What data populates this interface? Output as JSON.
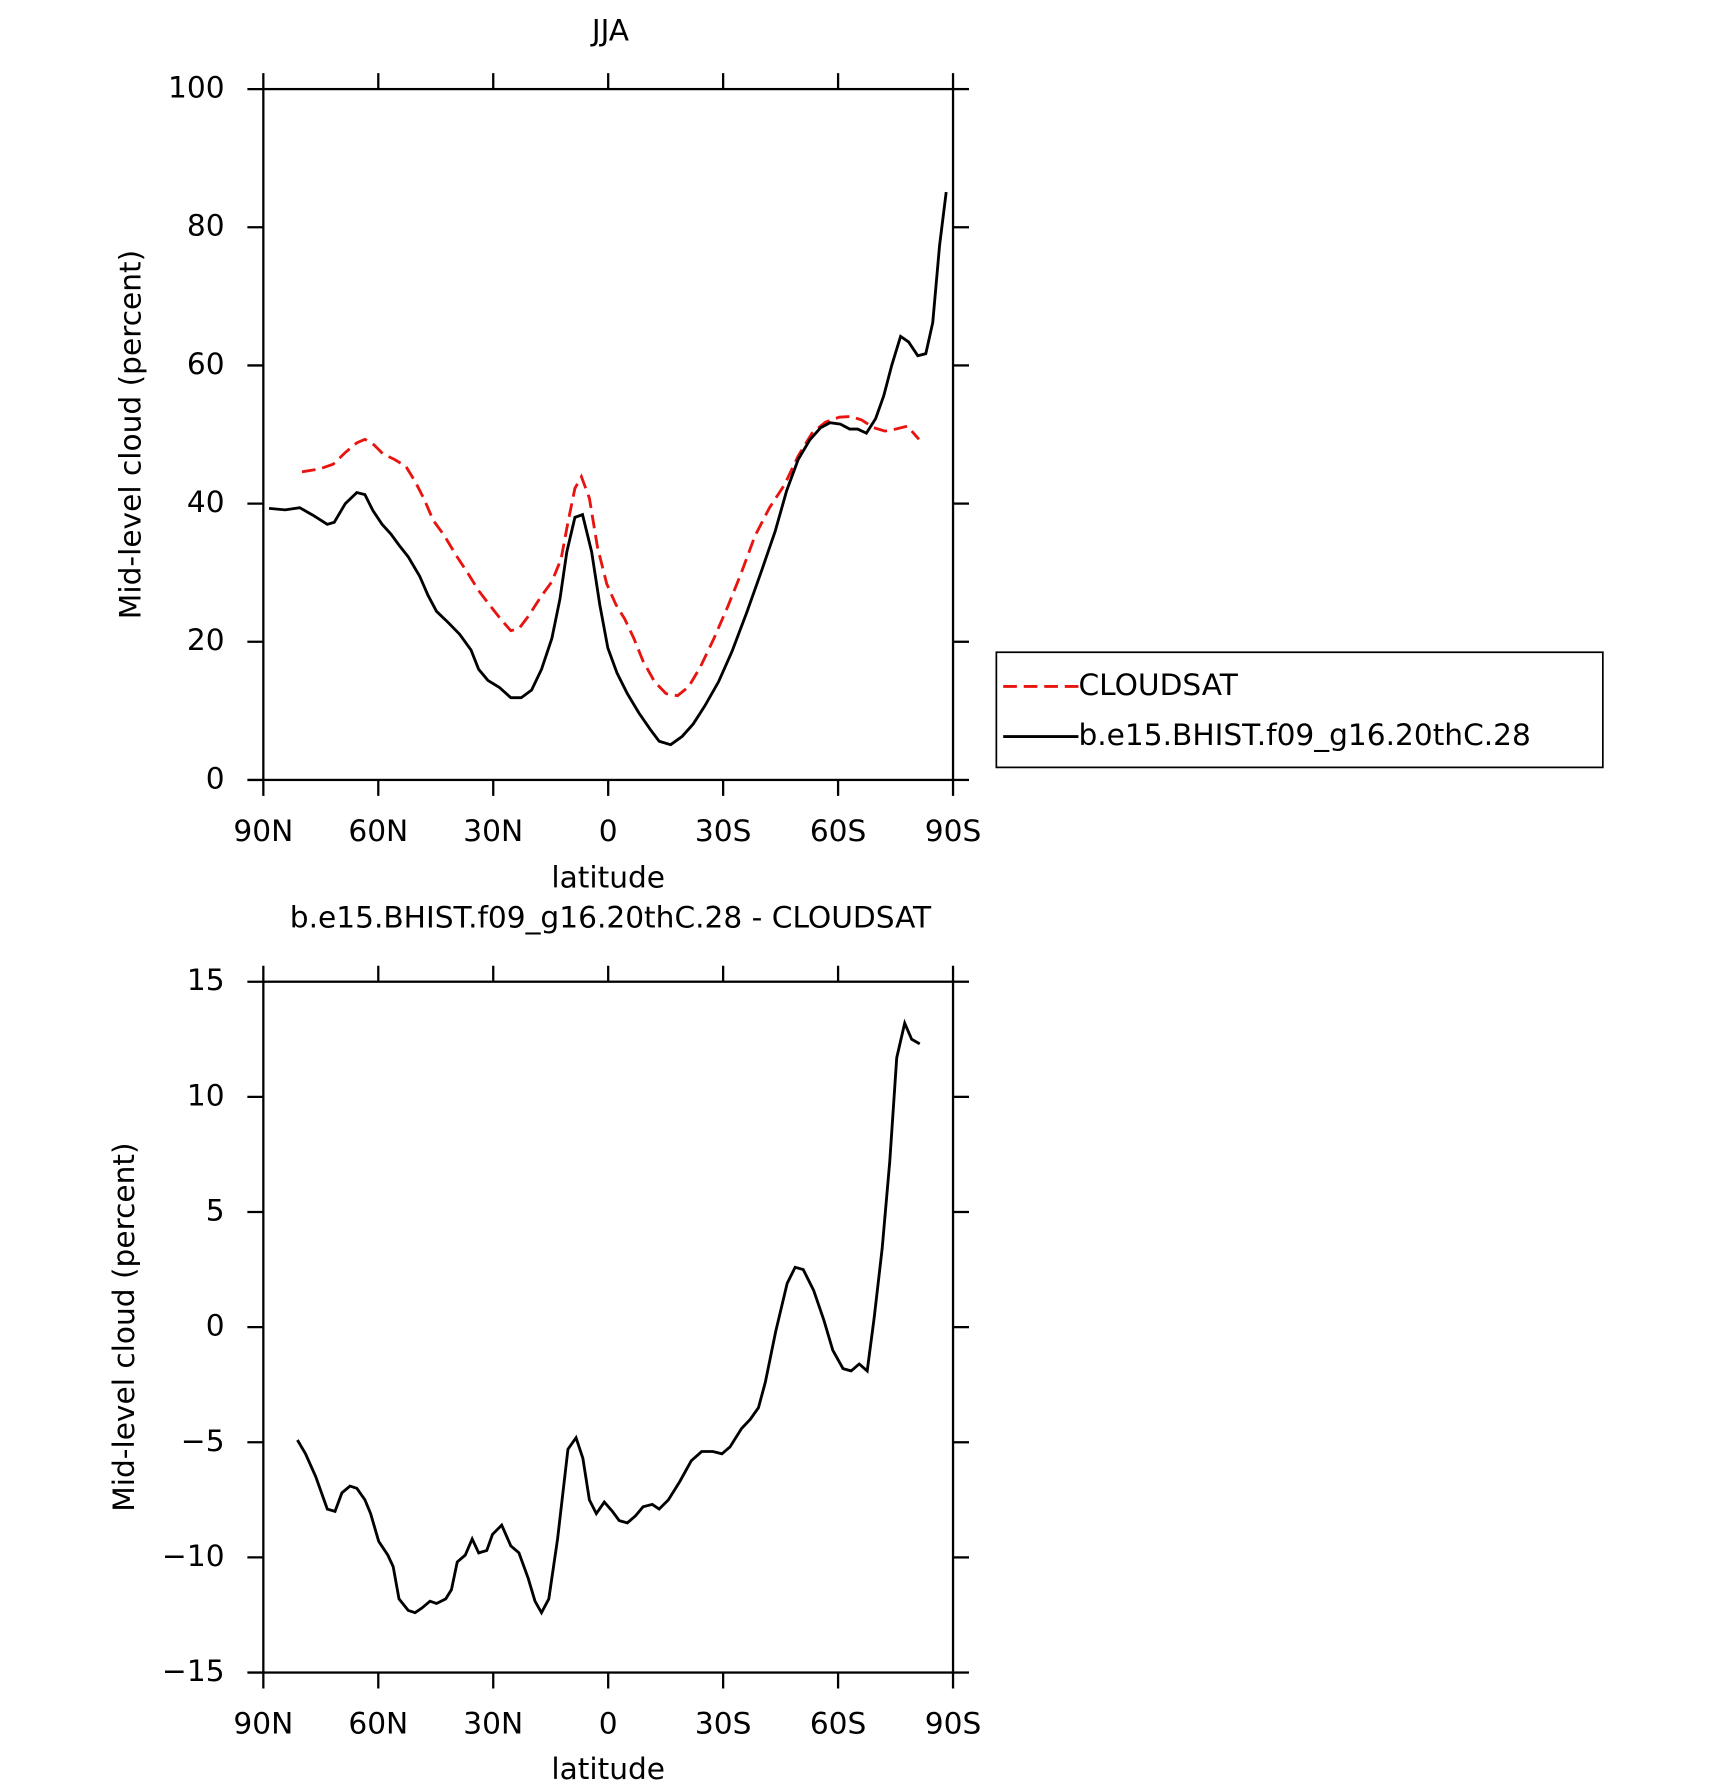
{
  "chart_data": [
    {
      "type": "line",
      "title": "JJA",
      "xlabel": "latitude",
      "ylabel": "Mid-level cloud (percent)",
      "xlim": [
        90,
        -90
      ],
      "xticks": [
        {
          "value": 90,
          "label": "90N"
        },
        {
          "value": 60,
          "label": "60N"
        },
        {
          "value": 30,
          "label": "30N"
        },
        0,
        {
          "value": -30,
          "label": "30S"
        },
        {
          "value": -60,
          "label": "60S"
        },
        {
          "value": -90,
          "label": "90S"
        }
      ],
      "ylim": [
        0,
        100
      ],
      "yticks": [
        0,
        20,
        40,
        60,
        80,
        100
      ],
      "legend": "right",
      "series": [
        {
          "name": "CLOUDSAT",
          "color": "#e8140f",
          "linestyle": "dashed",
          "x": [
            79.9,
            75.4,
            71.8,
            68.6,
            65.6,
            63.5,
            61.1,
            58.8,
            55.8,
            52.8,
            50.4,
            48,
            45.7,
            42.7,
            39.7,
            36.7,
            33.8,
            30.8,
            27.8,
            25.4,
            23.3,
            20.7,
            17.7,
            14.7,
            12.3,
            10.5,
            8.7,
            7,
            4.9,
            2.8,
            0.4,
            -2,
            -4.3,
            -6.7,
            -9.1,
            -12.1,
            -15.1,
            -18.1,
            -21,
            -24,
            -27.6,
            -31.2,
            -34.7,
            -38.3,
            -42.1,
            -46,
            -49.6,
            -53.2,
            -56.7,
            -60.3,
            -63.3,
            -66.2,
            -69.2,
            -72.2,
            -75.1,
            -78.1,
            -81.1
          ],
          "values": [
            44.6,
            45,
            45.7,
            47.4,
            48.8,
            49.3,
            48.5,
            47.2,
            46.4,
            45.4,
            43.2,
            40.6,
            37.6,
            35.3,
            32.5,
            30,
            27.4,
            25.2,
            23.1,
            21.6,
            21.9,
            23.8,
            26.4,
            28.7,
            32,
            37.3,
            42.2,
            43.9,
            40.8,
            33.7,
            28.4,
            25.4,
            23.3,
            20.5,
            17.2,
            14.2,
            12.5,
            12.2,
            13.5,
            16.3,
            20.5,
            25.1,
            29.9,
            35.3,
            39.4,
            42.7,
            46.9,
            50.2,
            51.8,
            52.5,
            52.6,
            52.1,
            51,
            50.5,
            50.8,
            51.2,
            49.3
          ]
        },
        {
          "name": "b.e15.BHIST.f09_g16.20thC.28",
          "color": "#000000",
          "linestyle": "solid",
          "x": [
            88.5,
            84.3,
            80.5,
            77,
            73.3,
            71.5,
            68.6,
            65.6,
            63.5,
            61.4,
            59,
            56.7,
            54.6,
            52.2,
            49.2,
            47,
            44.8,
            41.8,
            38.8,
            35.8,
            33.8,
            31.4,
            28.4,
            25.4,
            22.7,
            20,
            17.4,
            14.7,
            12.6,
            10.8,
            8.7,
            6.7,
            4.3,
            2.2,
            0.1,
            -2.3,
            -5,
            -8,
            -11,
            -13.3,
            -16.3,
            -19.3,
            -22.2,
            -25.2,
            -28.8,
            -32.3,
            -36.2,
            -40.1,
            -43.6,
            -46.6,
            -49.6,
            -52.6,
            -55.5,
            -57.9,
            -60.6,
            -63,
            -65.1,
            -67.4,
            -69.8,
            -71.9,
            -74,
            -76.3,
            -78.4,
            -80.8,
            -82.9,
            -84.7,
            -86.5,
            -88.2
          ],
          "values": [
            39.3,
            39.1,
            39.4,
            38.3,
            37,
            37.3,
            40,
            41.6,
            41.3,
            39,
            37,
            35.6,
            34,
            32.3,
            29.5,
            26.7,
            24.4,
            22.8,
            21.1,
            18.8,
            16,
            14.4,
            13.4,
            11.9,
            11.9,
            13,
            16,
            20.5,
            26.2,
            33,
            38,
            38.4,
            33,
            25.4,
            19.1,
            15.5,
            12.5,
            9.7,
            7.3,
            5.6,
            5.1,
            6.3,
            8.1,
            10.7,
            14.2,
            18.6,
            24.3,
            30.4,
            36,
            41.9,
            46.4,
            49.2,
            51,
            51.7,
            51.5,
            50.8,
            50.8,
            50.2,
            52.3,
            55.6,
            60,
            64.2,
            63.4,
            61.4,
            61.7,
            66.2,
            77.4,
            85.1
          ]
        }
      ]
    },
    {
      "type": "line",
      "title": "b.e15.BHIST.f09_g16.20thC.28 - CLOUDSAT",
      "xlabel": "latitude",
      "ylabel": "Mid-level cloud (percent)",
      "xlim": [
        90,
        -90
      ],
      "xticks": [
        {
          "value": 90,
          "label": "90N"
        },
        {
          "value": 60,
          "label": "60N"
        },
        {
          "value": 30,
          "label": "30N"
        },
        0,
        {
          "value": -30,
          "label": "30S"
        },
        {
          "value": -60,
          "label": "60S"
        },
        {
          "value": -90,
          "label": "90S"
        }
      ],
      "ylim": [
        -15,
        15
      ],
      "yticks": [
        {
          "value": -15,
          "label": "−15"
        },
        {
          "value": -10,
          "label": "−10"
        },
        {
          "value": -5,
          "label": "−5"
        },
        0,
        5,
        10,
        15
      ],
      "series": [
        {
          "color": "#000000",
          "linestyle": "solid",
          "x": [
            81.1,
            79,
            76.3,
            73.3,
            71.3,
            69.5,
            67.4,
            65.6,
            63.5,
            62,
            59.9,
            57.5,
            56.1,
            54.6,
            52.2,
            50.4,
            48.6,
            46.5,
            44.8,
            42.4,
            40.9,
            39.4,
            37.3,
            35.5,
            33.8,
            31.7,
            30.2,
            27.8,
            25.4,
            23.3,
            20.9,
            19.1,
            17.4,
            15.5,
            13.2,
            10.5,
            8.4,
            6.6,
            4.9,
            3.1,
            1,
            -1.1,
            -2.9,
            -5,
            -7.1,
            -9.1,
            -11.5,
            -13.3,
            -15.7,
            -18.7,
            -21.7,
            -24.4,
            -27.3,
            -29.7,
            -31.8,
            -34.8,
            -37.1,
            -39.2,
            -41,
            -43.7,
            -46.7,
            -48.8,
            -50.9,
            -53.6,
            -56.3,
            -58.6,
            -61.3,
            -63.4,
            -65.5,
            -67.6,
            -69.4,
            -71.5,
            -73.5,
            -75.3,
            -77.4,
            -79.2,
            -81.3
          ],
          "values": [
            -4.9,
            -5.5,
            -6.5,
            -7.9,
            -8,
            -7.2,
            -6.9,
            -7,
            -7.5,
            -8.1,
            -9.3,
            -9.9,
            -10.4,
            -11.8,
            -12.3,
            -12.4,
            -12.2,
            -11.9,
            -12,
            -11.8,
            -11.4,
            -10.2,
            -9.9,
            -9.2,
            -9.8,
            -9.7,
            -9,
            -8.6,
            -9.5,
            -9.8,
            -10.9,
            -11.9,
            -12.4,
            -11.8,
            -9.2,
            -5.3,
            -4.8,
            -5.7,
            -7.5,
            -8.1,
            -7.6,
            -8,
            -8.4,
            -8.5,
            -8.2,
            -7.8,
            -7.7,
            -7.9,
            -7.5,
            -6.7,
            -5.8,
            -5.4,
            -5.4,
            -5.5,
            -5.2,
            -4.4,
            -4,
            -3.5,
            -2.4,
            -0.2,
            1.9,
            2.6,
            2.5,
            1.6,
            0.3,
            -1,
            -1.8,
            -1.9,
            -1.6,
            -1.9,
            0.4,
            3.4,
            7.2,
            11.7,
            13.2,
            12.5,
            12.3
          ]
        }
      ]
    }
  ]
}
